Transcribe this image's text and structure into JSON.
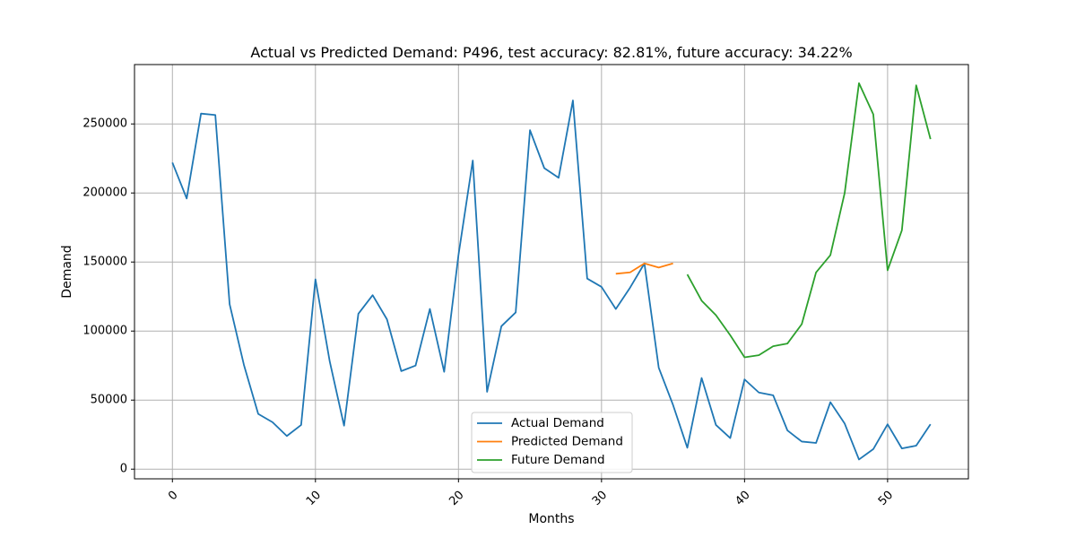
{
  "chart_data": {
    "type": "line",
    "title": "Actual vs Predicted Demand: P496, test accuracy: 82.81%, future accuracy: 34.22%",
    "xlabel": "Months",
    "ylabel": "Demand",
    "xlim": [
      -2.65,
      55.65
    ],
    "ylim": [
      -7000,
      293000
    ],
    "x_ticks": [
      0,
      10,
      20,
      30,
      40,
      50
    ],
    "y_ticks": [
      0,
      50000,
      100000,
      150000,
      200000,
      250000
    ],
    "grid": true,
    "legend_position": "lower center",
    "series": [
      {
        "name": "Actual Demand",
        "color": "#1f77b4",
        "x": [
          0,
          1,
          2,
          3,
          4,
          5,
          6,
          7,
          8,
          9,
          10,
          11,
          12,
          13,
          14,
          15,
          16,
          17,
          18,
          19,
          20,
          21,
          22,
          23,
          24,
          25,
          26,
          27,
          28,
          29,
          30,
          31,
          32,
          33,
          34,
          35,
          36,
          37,
          38,
          39,
          40,
          41,
          42,
          43,
          44,
          45,
          46,
          47,
          48,
          49,
          50,
          51,
          52,
          53
        ],
        "values": [
          222000,
          196000,
          257500,
          256500,
          119500,
          75500,
          40000,
          34000,
          24000,
          32000,
          137500,
          78000,
          31500,
          112500,
          126000,
          108500,
          71000,
          75000,
          116000,
          70500,
          155000,
          223500,
          56000,
          103500,
          113500,
          245500,
          218000,
          211000,
          267000,
          138000,
          132000,
          116000,
          131500,
          149000,
          73500,
          46500,
          15500,
          66000,
          32000,
          22500,
          65000,
          55500,
          53500,
          28000,
          20000,
          19000,
          48500,
          33000,
          7000,
          14500,
          32500,
          15000,
          17000,
          32500
        ]
      },
      {
        "name": "Predicted Demand",
        "color": "#ff7f0e",
        "x": [
          31,
          32,
          33,
          34,
          35
        ],
        "values": [
          141500,
          142500,
          149000,
          146000,
          149000
        ]
      },
      {
        "name": "Future Demand",
        "color": "#2ca02c",
        "x": [
          36,
          37,
          38,
          39,
          40,
          41,
          42,
          43,
          44,
          45,
          46,
          47,
          48,
          49,
          50,
          51,
          52,
          53
        ],
        "values": [
          141000,
          122000,
          111500,
          97000,
          81000,
          82500,
          89000,
          91000,
          105000,
          142500,
          155000,
          200000,
          279500,
          257000,
          144000,
          173000,
          278000,
          239000
        ]
      }
    ]
  }
}
